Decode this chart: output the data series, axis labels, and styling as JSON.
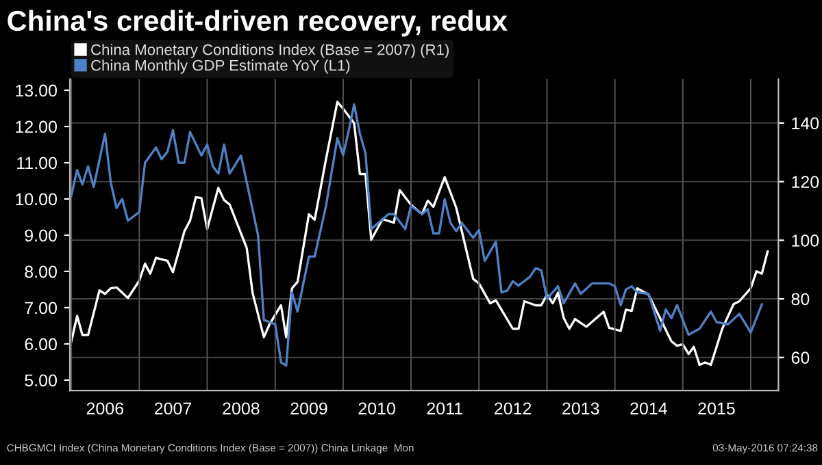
{
  "chart_data": {
    "type": "line",
    "title": "China's credit-driven recovery, redux",
    "series": [
      {
        "name": "China Monetary Conditions Index (Base = 2007) (R1)",
        "color": "#ffffff",
        "axis": "y2",
        "x": [
          "2006-01",
          "2006-02",
          "2006-03",
          "2006-04",
          "2006-06",
          "2006-07",
          "2006-08",
          "2006-09",
          "2006-11",
          "2007-01",
          "2007-02",
          "2007-03",
          "2007-04",
          "2007-06",
          "2007-07",
          "2007-09",
          "2007-10",
          "2007-11",
          "2007-12",
          "2008-01",
          "2008-03",
          "2008-04",
          "2008-05",
          "2008-08",
          "2008-09",
          "2008-11",
          "2008-12",
          "2009-02",
          "2009-03",
          "2009-04",
          "2009-05",
          "2009-07",
          "2009-08",
          "2009-10",
          "2009-12",
          "2010-01",
          "2010-03",
          "2010-04",
          "2010-05",
          "2010-06",
          "2010-08",
          "2010-10",
          "2010-11",
          "2011-01",
          "2011-03",
          "2011-04",
          "2011-05",
          "2011-07",
          "2011-09",
          "2011-12",
          "2012-01",
          "2012-03",
          "2012-04",
          "2012-07",
          "2012-08",
          "2012-09",
          "2012-11",
          "2012-12",
          "2013-01",
          "2013-02",
          "2013-03",
          "2013-04",
          "2013-05",
          "2013-06",
          "2013-08",
          "2013-11",
          "2013-12",
          "2014-02",
          "2014-03",
          "2014-04",
          "2014-05",
          "2014-07",
          "2014-11",
          "2014-12",
          "2015-01",
          "2015-02",
          "2015-03",
          "2015-04",
          "2015-05",
          "2015-06",
          "2015-08",
          "2015-10",
          "2015-11",
          "2016-01",
          "2016-02",
          "2016-03",
          "2016-04"
        ],
        "values": [
          65.5,
          74.2,
          67.7,
          67.7,
          82.9,
          81.7,
          83.6,
          83.9,
          80.3,
          86.2,
          92.0,
          88.6,
          94.0,
          93.0,
          89.1,
          103.1,
          106.7,
          114.7,
          114.4,
          103.8,
          117.9,
          113.7,
          112.2,
          97.3,
          82.1,
          66.9,
          71.3,
          77.8,
          66.9,
          83.6,
          85.8,
          108.9,
          107.0,
          127.7,
          147.2,
          144.9,
          140.0,
          122.6,
          122.6,
          100.2,
          107.2,
          106.0,
          117.1,
          112.1,
          108.9,
          113.5,
          111.4,
          121.5,
          111.1,
          86.8,
          85.3,
          78.5,
          79.5,
          69.8,
          69.8,
          79.2,
          77.8,
          77.8,
          81.4,
          78.5,
          82.1,
          73.4,
          69.8,
          73.1,
          70.5,
          75.6,
          70.1,
          69.1,
          76.3,
          75.9,
          83.6,
          81.4,
          65.5,
          64.0,
          64.5,
          61.2,
          63.6,
          57.5,
          58.3,
          57.5,
          69.8,
          78.2,
          79.2,
          83.6,
          89.4,
          88.6,
          96.2
        ]
      },
      {
        "name": "China Monthly GDP Estimate YoY (L1)",
        "color": "#4f81c7",
        "axis": "y",
        "x": [
          "2006-01",
          "2006-02",
          "2006-03",
          "2006-04",
          "2006-05",
          "2006-07",
          "2006-08",
          "2006-09",
          "2006-10",
          "2006-11",
          "2007-01",
          "2007-02",
          "2007-04",
          "2007-05",
          "2007-06",
          "2007-07",
          "2007-08",
          "2007-09",
          "2007-10",
          "2007-12",
          "2008-01",
          "2008-02",
          "2008-03",
          "2008-04",
          "2008-05",
          "2008-07",
          "2008-10",
          "2008-11",
          "2009-01",
          "2009-02",
          "2009-03",
          "2009-04",
          "2009-05",
          "2009-07",
          "2009-08",
          "2009-10",
          "2009-12",
          "2010-01",
          "2010-02",
          "2010-03",
          "2010-04",
          "2010-05",
          "2010-06",
          "2010-09",
          "2010-10",
          "2010-12",
          "2011-01",
          "2011-03",
          "2011-04",
          "2011-05",
          "2011-06",
          "2011-07",
          "2011-08",
          "2011-09",
          "2011-10",
          "2011-12",
          "2012-01",
          "2012-02",
          "2012-04",
          "2012-05",
          "2012-06",
          "2012-07",
          "2012-08",
          "2012-10",
          "2012-11",
          "2012-12",
          "2013-01",
          "2013-03",
          "2013-04",
          "2013-06",
          "2013-07",
          "2013-09",
          "2013-12",
          "2014-01",
          "2014-02",
          "2014-03",
          "2014-04",
          "2014-05",
          "2014-07",
          "2014-09",
          "2014-10",
          "2014-11",
          "2014-12",
          "2015-02",
          "2015-04",
          "2015-06",
          "2015-07",
          "2015-09",
          "2015-11",
          "2016-01",
          "2016-03"
        ],
        "values": [
          10.1,
          10.8,
          10.4,
          10.9,
          10.33,
          11.8,
          10.45,
          9.75,
          10.0,
          9.4,
          9.64,
          11.0,
          11.42,
          11.1,
          11.3,
          11.9,
          11.0,
          11.0,
          11.85,
          11.2,
          11.5,
          10.9,
          10.7,
          11.5,
          10.7,
          11.2,
          8.99,
          6.66,
          6.54,
          5.49,
          5.4,
          7.42,
          6.89,
          8.41,
          8.41,
          9.81,
          11.68,
          11.21,
          11.91,
          12.61,
          11.8,
          11.27,
          9.17,
          9.58,
          9.58,
          9.17,
          9.81,
          9.58,
          9.72,
          9.05,
          9.05,
          9.99,
          9.34,
          9.11,
          9.34,
          8.93,
          9.14,
          8.29,
          8.82,
          7.42,
          7.47,
          7.73,
          7.61,
          7.85,
          8.09,
          8.03,
          7.24,
          7.59,
          7.12,
          7.67,
          7.38,
          7.67,
          7.67,
          7.59,
          7.07,
          7.5,
          7.59,
          7.42,
          7.38,
          6.36,
          6.95,
          6.71,
          7.07,
          6.25,
          6.42,
          6.89,
          6.6,
          6.54,
          6.83,
          6.31,
          7.09
        ]
      }
    ],
    "xlim": [
      "2005-12-24",
      "2016-05-29"
    ],
    "xticks": [
      {
        "value": "2006-01-01",
        "label": null
      },
      {
        "value": "2006-07-01",
        "label": "2006"
      },
      {
        "value": "2007-01-01",
        "label": null
      },
      {
        "value": "2007-07-01",
        "label": "2007"
      },
      {
        "value": "2008-01-01",
        "label": null
      },
      {
        "value": "2008-07-01",
        "label": "2008"
      },
      {
        "value": "2009-01-01",
        "label": null
      },
      {
        "value": "2009-07-01",
        "label": "2009"
      },
      {
        "value": "2010-01-01",
        "label": null
      },
      {
        "value": "2010-07-01",
        "label": "2010"
      },
      {
        "value": "2011-01-01",
        "label": null
      },
      {
        "value": "2011-07-01",
        "label": "2011"
      },
      {
        "value": "2012-01-01",
        "label": null
      },
      {
        "value": "2012-07-01",
        "label": "2012"
      },
      {
        "value": "2013-01-01",
        "label": null
      },
      {
        "value": "2013-07-01",
        "label": "2013"
      },
      {
        "value": "2014-01-01",
        "label": null
      },
      {
        "value": "2014-07-01",
        "label": "2014"
      },
      {
        "value": "2015-01-01",
        "label": null
      },
      {
        "value": "2015-07-01",
        "label": "2015"
      },
      {
        "value": "2016-01-01",
        "label": null
      }
    ],
    "ylim": [
      4.71,
      13.31
    ],
    "yticks": [
      {
        "value": 5,
        "label": "5.00"
      },
      {
        "value": 6,
        "label": "6.00"
      },
      {
        "value": 7,
        "label": "7.00"
      },
      {
        "value": 8,
        "label": "8.00"
      },
      {
        "value": 9,
        "label": "9.00"
      },
      {
        "value": 10,
        "label": "10.00"
      },
      {
        "value": 11,
        "label": "11.00"
      },
      {
        "value": 12,
        "label": "12.00"
      },
      {
        "value": 13,
        "label": "13.00"
      }
    ],
    "y2lim": [
      48.7,
      155
    ],
    "y2ticks": [
      60,
      80,
      100,
      120,
      140
    ],
    "grid": true,
    "legend": "top left",
    "annotations": [
      "CHBGMCI Index (China Monetary Conditions Index (Base = 2007)) China Linkage  Mon",
      "03-May-2016 07:24:38"
    ]
  }
}
